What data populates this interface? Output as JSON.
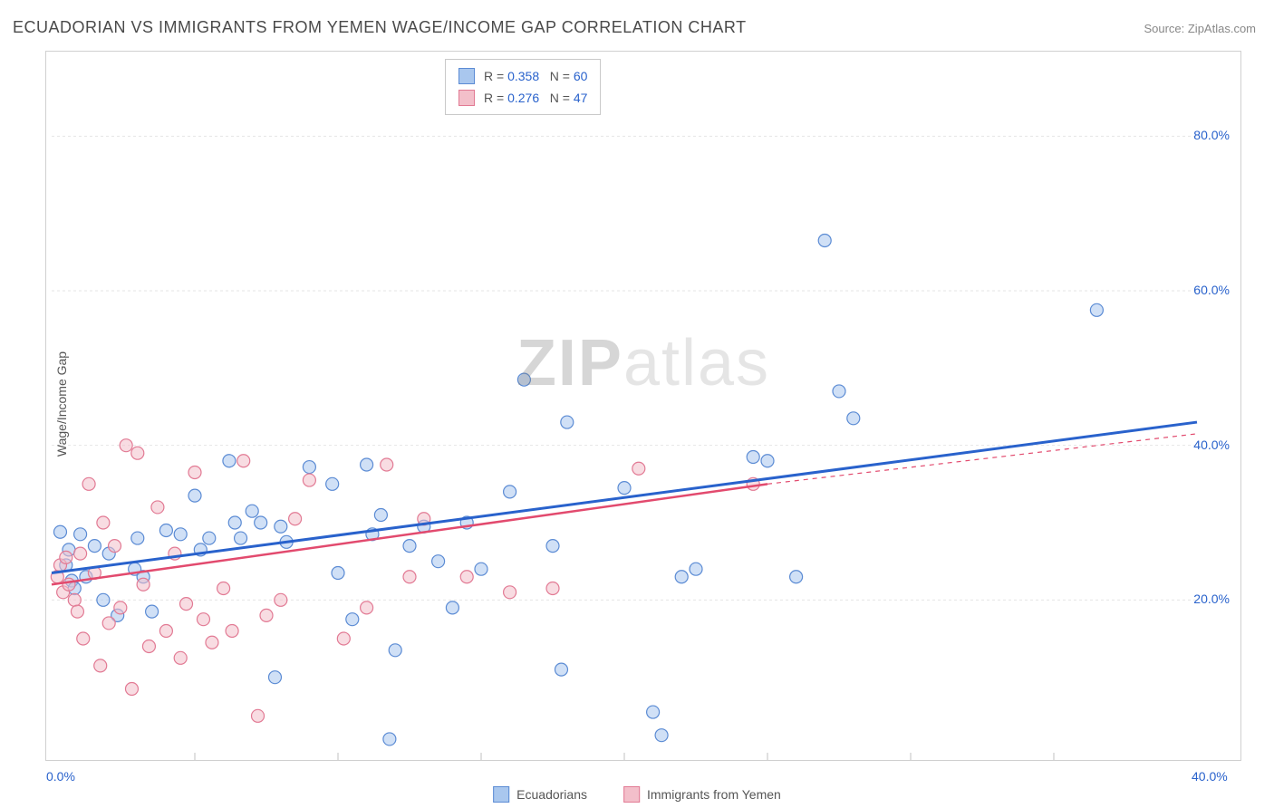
{
  "title": "ECUADORIAN VS IMMIGRANTS FROM YEMEN WAGE/INCOME GAP CORRELATION CHART",
  "source": "Source: ZipAtlas.com",
  "y_axis_label": "Wage/Income Gap",
  "watermark_bold": "ZIP",
  "watermark_light": "atlas",
  "chart": {
    "type": "scatter",
    "xlim": [
      0,
      40
    ],
    "ylim": [
      0,
      90
    ],
    "x_ticks": [
      0,
      40
    ],
    "x_tick_labels": [
      "0.0%",
      "40.0%"
    ],
    "x_minor_ticks": [
      5,
      10,
      15,
      20,
      25,
      30,
      35
    ],
    "y_ticks": [
      20,
      40,
      60,
      80
    ],
    "y_tick_labels": [
      "20.0%",
      "40.0%",
      "60.0%",
      "80.0%"
    ],
    "grid_color": "#e5e5e5",
    "background_color": "#ffffff",
    "marker_radius": 7,
    "marker_opacity": 0.55,
    "series": [
      {
        "name": "Ecuadorians",
        "fill": "#a9c7ee",
        "stroke": "#5b8bd4",
        "trend_color": "#2962cc",
        "trend_width": 3,
        "R": "0.358",
        "N": "60",
        "trend": {
          "x1": 0,
          "y1": 23.5,
          "x2": 40,
          "y2": 43
        },
        "points": [
          [
            0.3,
            28.8
          ],
          [
            0.5,
            24.5
          ],
          [
            0.6,
            26.5
          ],
          [
            0.7,
            22.5
          ],
          [
            0.8,
            21.5
          ],
          [
            1.0,
            28.5
          ],
          [
            1.2,
            23.0
          ],
          [
            1.5,
            27.0
          ],
          [
            1.8,
            20.0
          ],
          [
            2.0,
            26.0
          ],
          [
            2.3,
            18.0
          ],
          [
            2.9,
            24.0
          ],
          [
            3.0,
            28.0
          ],
          [
            3.2,
            23.0
          ],
          [
            3.5,
            18.5
          ],
          [
            4.0,
            29.0
          ],
          [
            4.5,
            28.5
          ],
          [
            5.0,
            33.5
          ],
          [
            5.2,
            26.5
          ],
          [
            5.5,
            28.0
          ],
          [
            6.2,
            38.0
          ],
          [
            6.4,
            30.0
          ],
          [
            6.6,
            28.0
          ],
          [
            7.0,
            31.5
          ],
          [
            7.3,
            30.0
          ],
          [
            7.8,
            10.0
          ],
          [
            8.0,
            29.5
          ],
          [
            8.2,
            27.5
          ],
          [
            9.0,
            37.2
          ],
          [
            9.8,
            35.0
          ],
          [
            10.0,
            23.5
          ],
          [
            10.5,
            17.5
          ],
          [
            11.0,
            37.5
          ],
          [
            11.2,
            28.5
          ],
          [
            11.5,
            31.0
          ],
          [
            11.8,
            2.0
          ],
          [
            12.0,
            13.5
          ],
          [
            12.5,
            27.0
          ],
          [
            13.0,
            29.5
          ],
          [
            13.5,
            25.0
          ],
          [
            14.0,
            19.0
          ],
          [
            14.5,
            30.0
          ],
          [
            15.0,
            24.0
          ],
          [
            16.0,
            34.0
          ],
          [
            16.5,
            48.5
          ],
          [
            17.5,
            27.0
          ],
          [
            17.8,
            11.0
          ],
          [
            18.0,
            43.0
          ],
          [
            20.0,
            34.5
          ],
          [
            21.0,
            5.5
          ],
          [
            21.3,
            2.5
          ],
          [
            22.0,
            23.0
          ],
          [
            22.5,
            24.0
          ],
          [
            24.5,
            38.5
          ],
          [
            25.0,
            38.0
          ],
          [
            26.0,
            23.0
          ],
          [
            27.0,
            66.5
          ],
          [
            27.5,
            47.0
          ],
          [
            28.0,
            43.5
          ],
          [
            36.5,
            57.5
          ]
        ]
      },
      {
        "name": "Immigrants from Yemen",
        "fill": "#f3bfca",
        "stroke": "#e27a94",
        "trend_color": "#e24a6e",
        "trend_width": 2.5,
        "R": "0.276",
        "N": "47",
        "trend": {
          "x1": 0,
          "y1": 22.0,
          "x2": 25,
          "y2": 35.0
        },
        "trend_dashed": {
          "x1": 25,
          "y1": 35.0,
          "x2": 40,
          "y2": 41.5
        },
        "points": [
          [
            0.2,
            23.0
          ],
          [
            0.3,
            24.5
          ],
          [
            0.4,
            21.0
          ],
          [
            0.5,
            25.5
          ],
          [
            0.6,
            22.0
          ],
          [
            0.8,
            20.0
          ],
          [
            0.9,
            18.5
          ],
          [
            1.0,
            26.0
          ],
          [
            1.1,
            15.0
          ],
          [
            1.3,
            35.0
          ],
          [
            1.5,
            23.5
          ],
          [
            1.7,
            11.5
          ],
          [
            1.8,
            30.0
          ],
          [
            2.0,
            17.0
          ],
          [
            2.2,
            27.0
          ],
          [
            2.4,
            19.0
          ],
          [
            2.6,
            40.0
          ],
          [
            2.8,
            8.5
          ],
          [
            3.0,
            39.0
          ],
          [
            3.2,
            22.0
          ],
          [
            3.4,
            14.0
          ],
          [
            3.7,
            32.0
          ],
          [
            4.0,
            16.0
          ],
          [
            4.3,
            26.0
          ],
          [
            4.5,
            12.5
          ],
          [
            4.7,
            19.5
          ],
          [
            5.0,
            36.5
          ],
          [
            5.3,
            17.5
          ],
          [
            5.6,
            14.5
          ],
          [
            6.0,
            21.5
          ],
          [
            6.3,
            16.0
          ],
          [
            6.7,
            38.0
          ],
          [
            7.2,
            5.0
          ],
          [
            7.5,
            18.0
          ],
          [
            8.0,
            20.0
          ],
          [
            8.5,
            30.5
          ],
          [
            9.0,
            35.5
          ],
          [
            10.2,
            15.0
          ],
          [
            11.0,
            19.0
          ],
          [
            11.7,
            37.5
          ],
          [
            12.5,
            23.0
          ],
          [
            13.0,
            30.5
          ],
          [
            14.5,
            23.0
          ],
          [
            16.0,
            21.0
          ],
          [
            17.5,
            21.5
          ],
          [
            20.5,
            37.0
          ],
          [
            24.5,
            35.0
          ]
        ]
      }
    ]
  },
  "bottom_legend": [
    {
      "label": "Ecuadorians",
      "fill": "#a9c7ee",
      "stroke": "#5b8bd4"
    },
    {
      "label": "Immigrants from Yemen",
      "fill": "#f3bfca",
      "stroke": "#e27a94"
    }
  ]
}
